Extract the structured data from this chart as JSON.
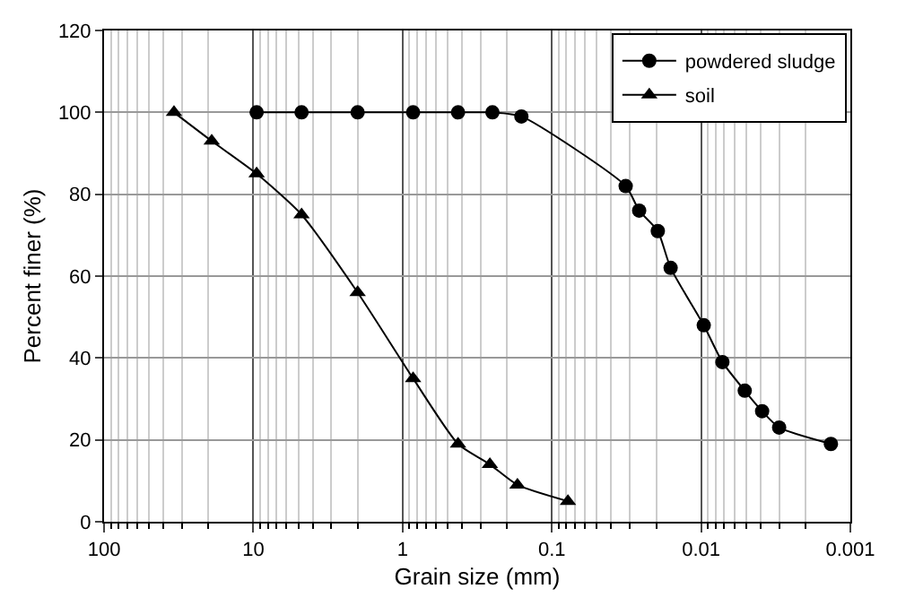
{
  "chart_data": {
    "type": "line",
    "xlabel": "Grain size (mm)",
    "ylabel": "Percent finer (%)",
    "series": [
      {
        "name": "powdered sludge",
        "color": "#000000",
        "marker": "circle",
        "x": [
          9.5,
          4.75,
          2,
          0.85,
          0.425,
          0.25,
          0.16,
          0.032,
          0.026,
          0.0195,
          0.016,
          0.0096,
          0.0072,
          0.0051,
          0.0039,
          0.003,
          0.00135
        ],
        "values": [
          100,
          100,
          100,
          100,
          100,
          100,
          99,
          82,
          76,
          71,
          62,
          48,
          39,
          32,
          27,
          23,
          19
        ]
      },
      {
        "name": "soil",
        "color": "#000000",
        "marker": "triangle",
        "x": [
          34,
          19,
          9.5,
          4.75,
          2,
          0.85,
          0.425,
          0.26,
          0.17,
          0.078
        ],
        "values": [
          100,
          93,
          85,
          75,
          56,
          35,
          19,
          14,
          9,
          5
        ]
      }
    ],
    "log": "x",
    "xlim": [
      100,
      0.001
    ],
    "xticks": [
      100,
      10,
      1,
      0.1,
      0.01,
      0.001
    ],
    "ylim": [
      0,
      120
    ],
    "yticks": [
      0,
      20,
      40,
      60,
      80,
      100,
      120
    ],
    "grid": true,
    "legend": "top right",
    "line_style": "solid"
  }
}
